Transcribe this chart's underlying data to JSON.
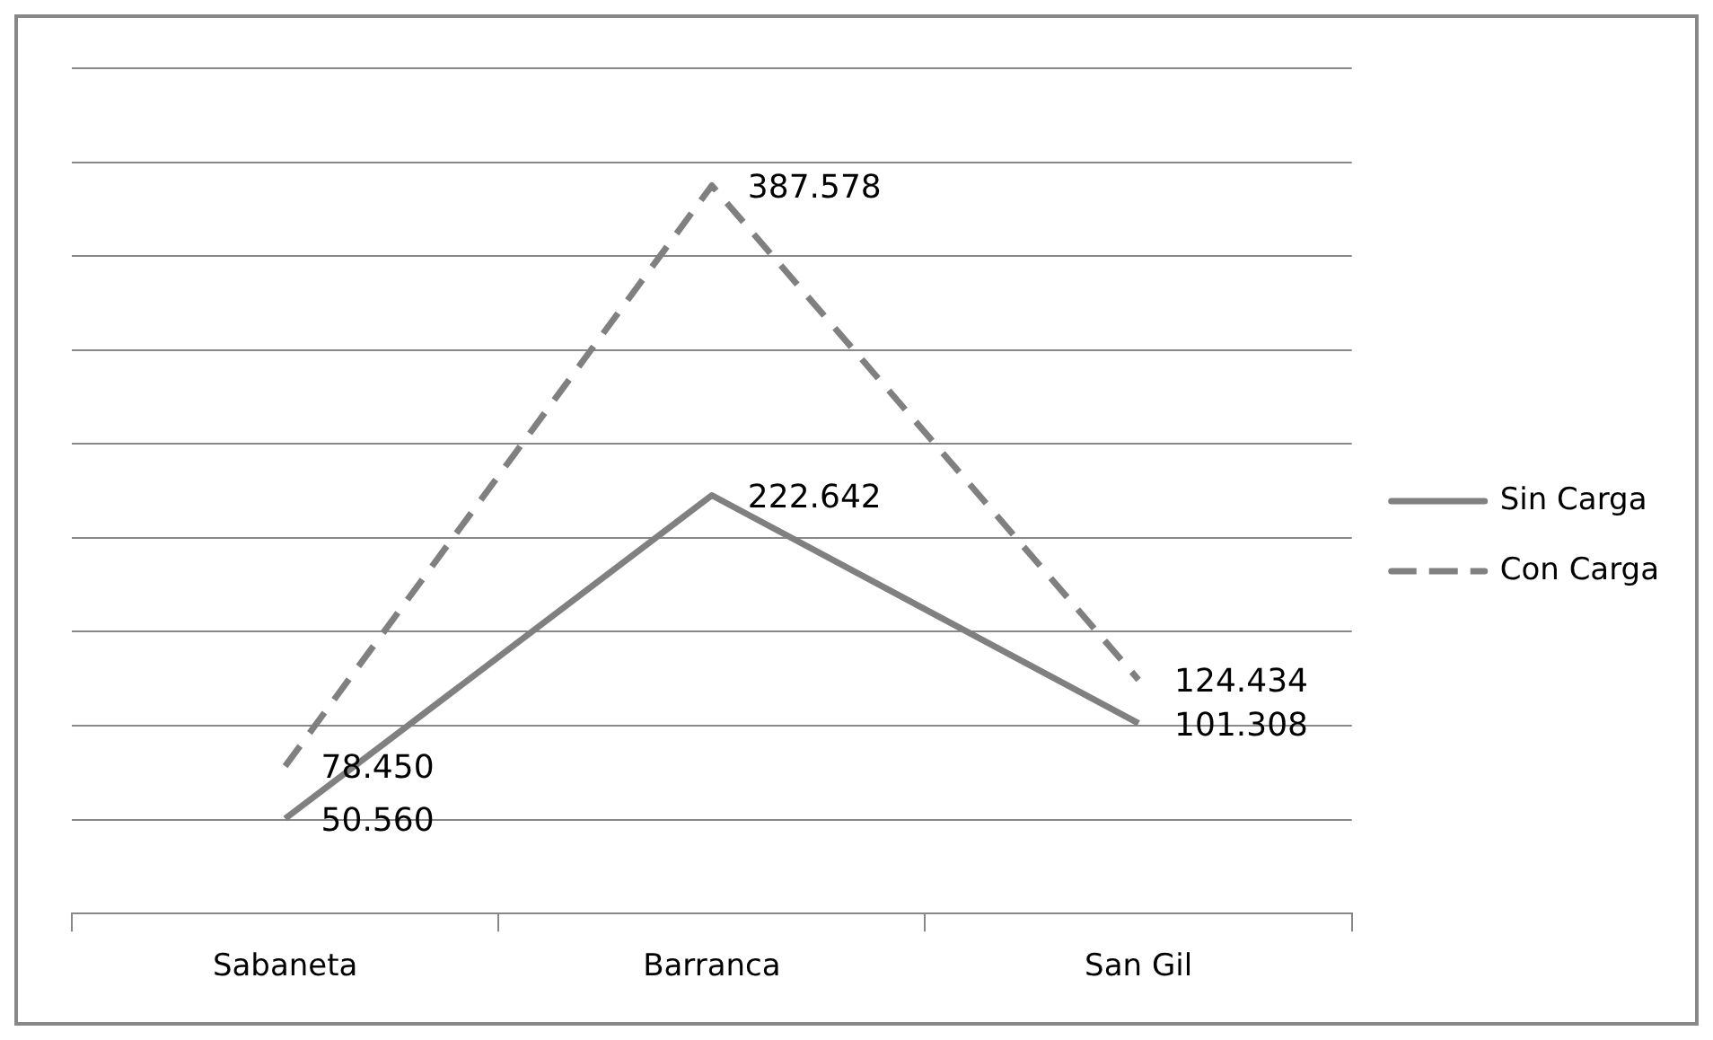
{
  "chart_data": {
    "type": "line",
    "categories": [
      "Sabaneta",
      "Barranca",
      "San Gil"
    ],
    "series": [
      {
        "name": "Sin Carga",
        "color": "#808080",
        "line_style": "solid",
        "values": [
          50.56,
          222.642,
          101.308
        ],
        "value_labels": [
          "50.560",
          "222.642",
          "101.308"
        ]
      },
      {
        "name": "Con Carga",
        "color": "#808080",
        "line_style": "dashed",
        "values": [
          78.45,
          387.578,
          124.434
        ],
        "value_labels": [
          "78.450",
          "387.578",
          "124.434"
        ]
      }
    ],
    "ylim": [
      0,
      450
    ],
    "yticks": [
      {
        "value": 0,
        "label": null
      },
      {
        "value": 50,
        "label": null
      },
      {
        "value": 100,
        "label": null
      },
      {
        "value": 150,
        "label": null
      },
      {
        "value": 200,
        "label": null
      },
      {
        "value": 250,
        "label": null
      },
      {
        "value": 300,
        "label": null
      },
      {
        "value": 350,
        "label": null
      },
      {
        "value": 400,
        "label": null
      },
      {
        "value": 450,
        "label": null
      }
    ],
    "grid": "y",
    "legend": "right",
    "tick_labels": "x",
    "marker": "none"
  }
}
